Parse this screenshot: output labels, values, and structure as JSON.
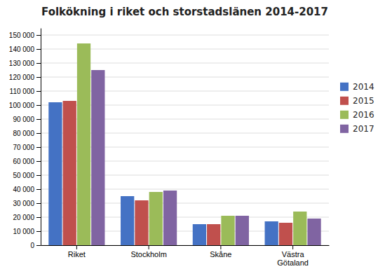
{
  "chart_data": {
    "type": "bar",
    "title": "Folkökning i riket och storstadslänen 2014-2017",
    "categories": [
      "Riket",
      "Stockholm",
      "Skåne",
      "Västra\nGötaland"
    ],
    "series": [
      {
        "name": "2014",
        "color": "#4472C4",
        "values": [
          102000,
          35000,
          15000,
          17000
        ]
      },
      {
        "name": "2015",
        "color": "#C0504D",
        "values": [
          103000,
          32000,
          15000,
          16000
        ]
      },
      {
        "name": "2016",
        "color": "#9BBB59",
        "values": [
          144000,
          38000,
          21000,
          24000
        ]
      },
      {
        "name": "2017",
        "color": "#8064A2",
        "values": [
          125000,
          39000,
          21000,
          19000
        ]
      }
    ],
    "ylim": [
      0,
      155000
    ],
    "yticks": [
      0,
      {
        "value": 10000,
        "label": "10 000"
      },
      {
        "value": 20000,
        "label": "20 000"
      },
      {
        "value": 30000,
        "label": "30 000"
      },
      {
        "value": 40000,
        "label": "40 000"
      },
      {
        "value": 50000,
        "label": "50 000"
      },
      {
        "value": 60000,
        "label": "60 000"
      },
      {
        "value": 70000,
        "label": "70 000"
      },
      {
        "value": 80000,
        "label": "80 000"
      },
      {
        "value": 90000,
        "label": "90 000"
      },
      {
        "value": 100000,
        "label": "100 000"
      },
      {
        "value": 110000,
        "label": "110 000"
      },
      {
        "value": 120000,
        "label": "120 000"
      },
      {
        "value": 130000,
        "label": "130 000"
      },
      {
        "value": 140000,
        "label": "140 000"
      },
      {
        "value": 150000,
        "label": "150 000"
      }
    ],
    "grid": true,
    "legend": "right"
  }
}
